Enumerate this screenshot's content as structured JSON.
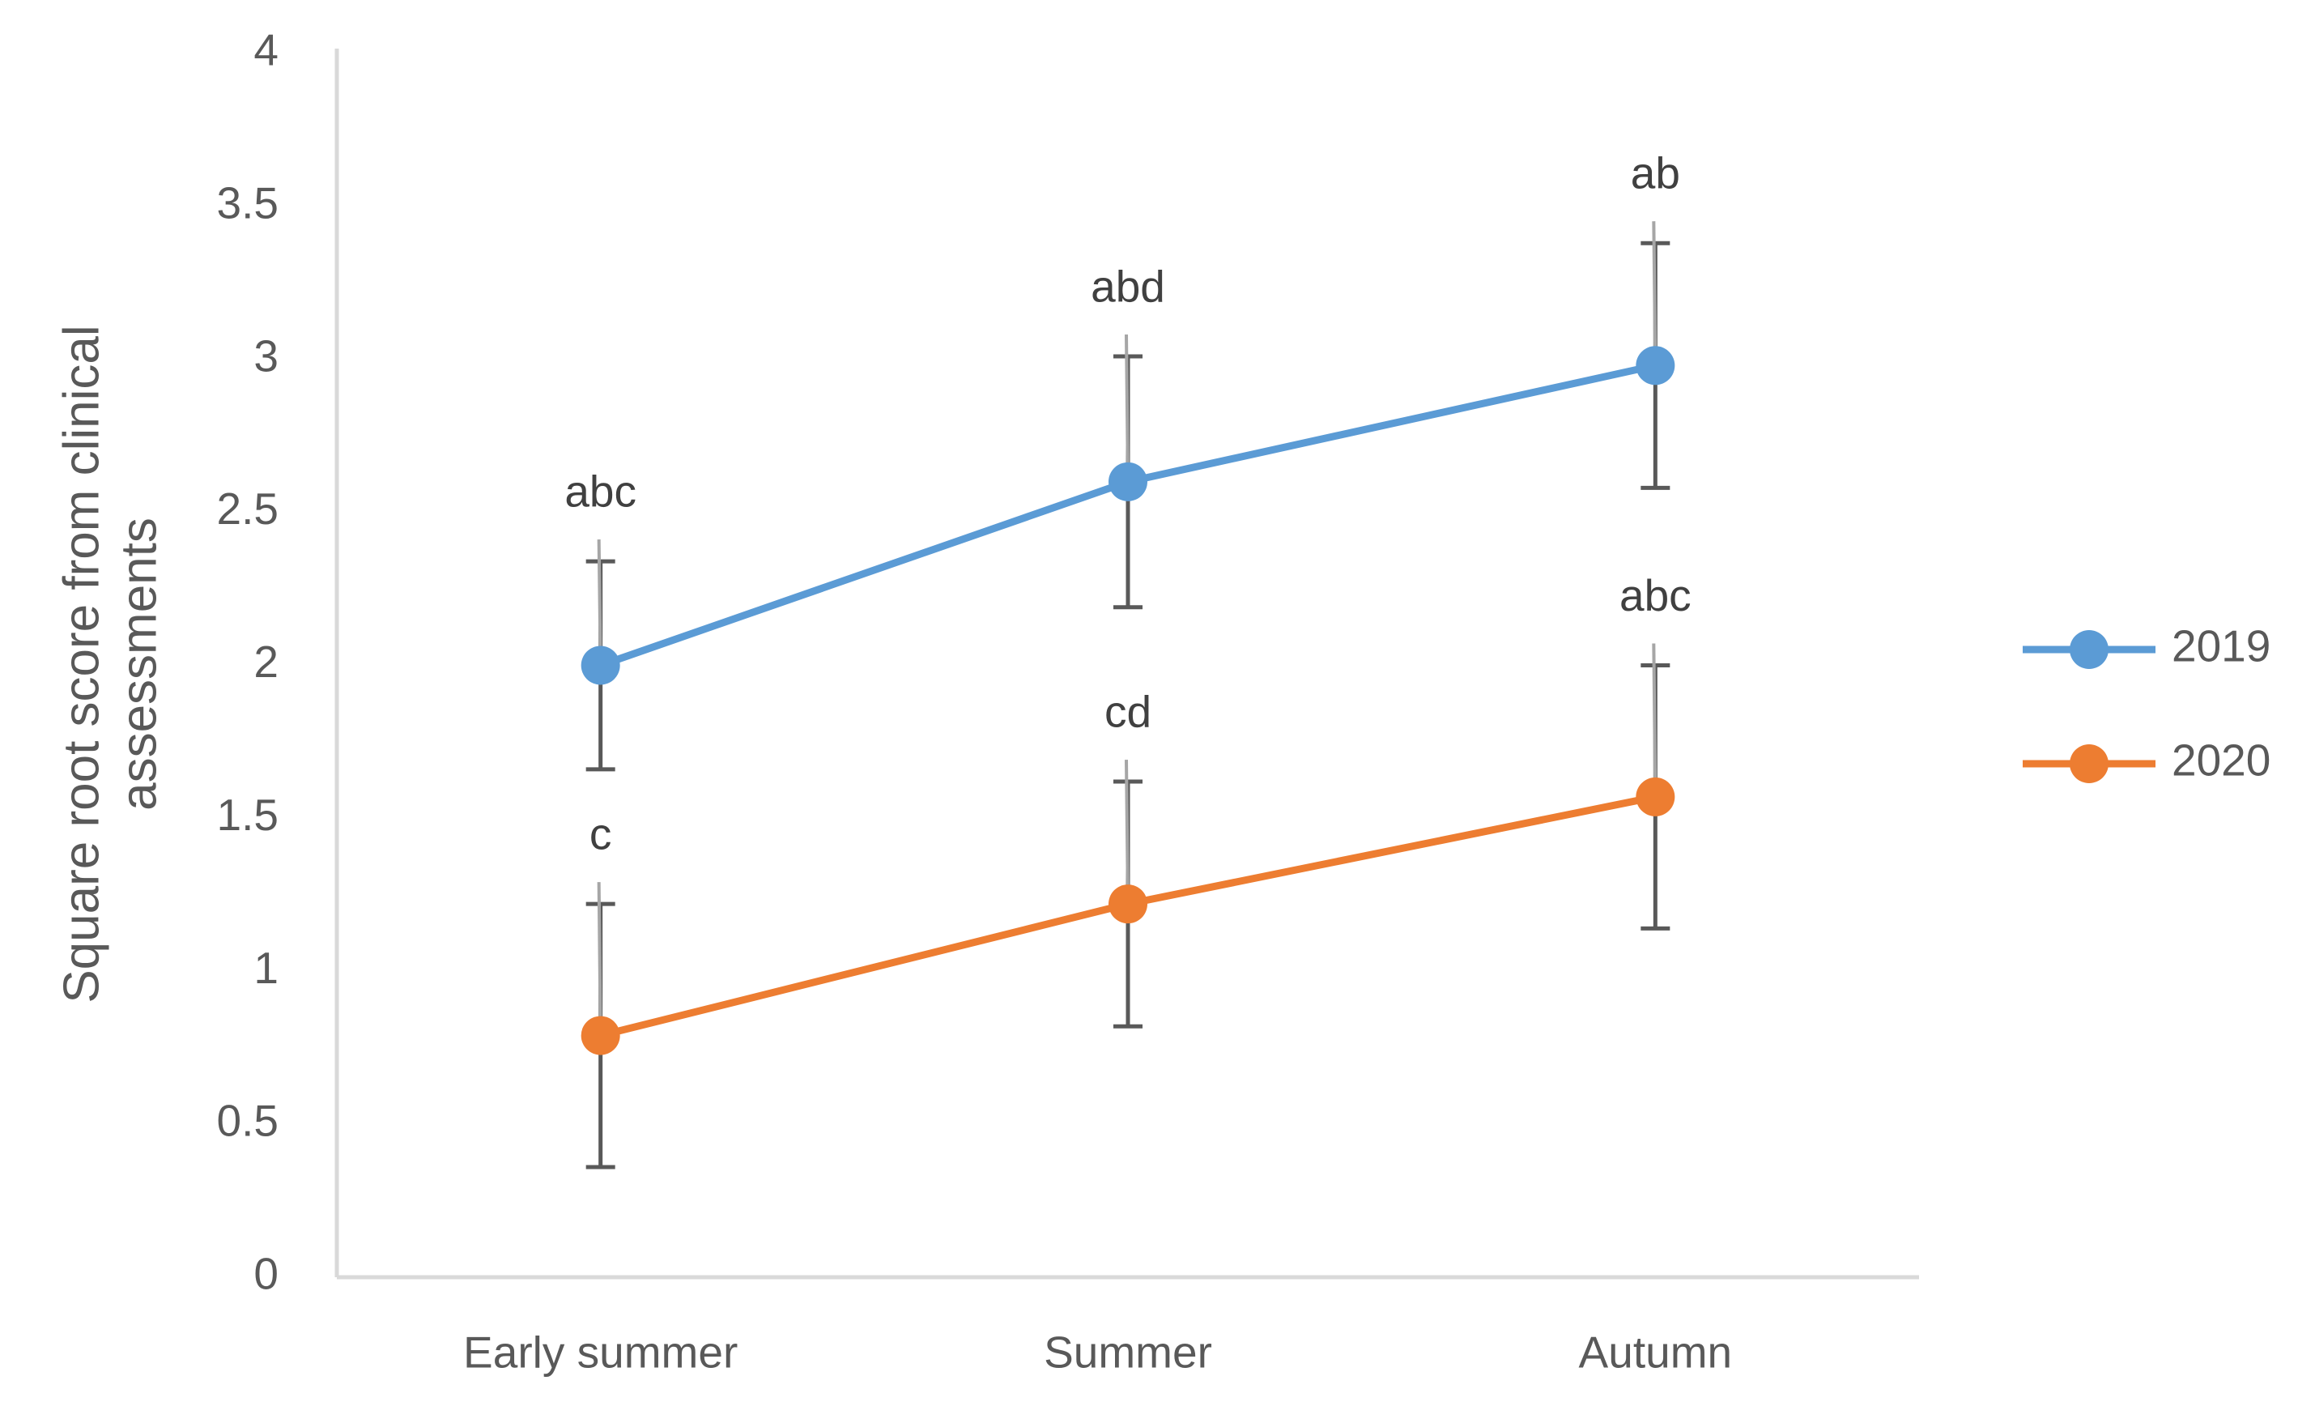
{
  "chart_data": {
    "type": "line",
    "ylabel": "Square root score from clinical assessments",
    "categories": [
      "Early summer",
      "Summer",
      "Autumn"
    ],
    "series": [
      {
        "name": "2019",
        "color": "#5b9bd5",
        "values": [
          2.0,
          2.6,
          2.98
        ],
        "errors": [
          0.34,
          0.41,
          0.4
        ],
        "labels": [
          "abc",
          "abd",
          "ab"
        ]
      },
      {
        "name": "2020",
        "color": "#ed7d31",
        "values": [
          0.79,
          1.22,
          1.57
        ],
        "errors": [
          0.43,
          0.4,
          0.43
        ],
        "labels": [
          "c",
          "cd",
          "abc"
        ]
      }
    ],
    "ylim": [
      0,
      4
    ],
    "yticks": [
      0,
      0.5,
      1,
      1.5,
      2,
      2.5,
      3,
      3.5,
      4
    ],
    "grid": false,
    "legend": "right"
  }
}
